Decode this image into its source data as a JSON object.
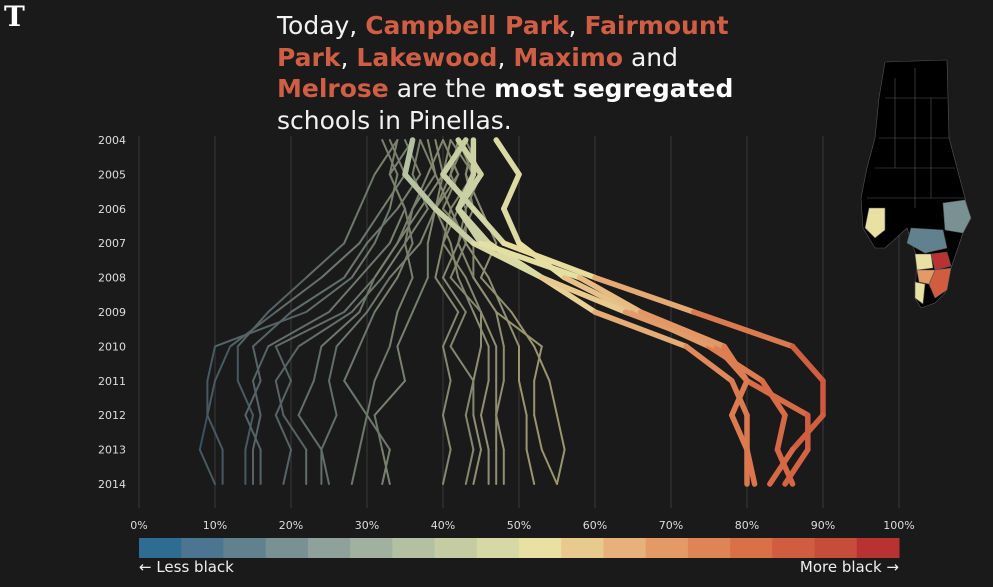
{
  "brand": {
    "logo_letter": "T",
    "logo_icon": "times-gothic-t-icon"
  },
  "headline": {
    "prefix": "Today, ",
    "schools": [
      "Campbell Park",
      "Fairmount Park",
      "Lakewood",
      "Maximo",
      "Melrose"
    ],
    "sep_comma": ", ",
    "sep_and": " and ",
    "middle": " are the ",
    "emphasis": "most segregated",
    "suffix": " schools in Pinellas."
  },
  "colors": {
    "background": "#1a1a1a",
    "highlight": "#cf5e44",
    "scale": [
      "#2e6c92",
      "#4b7590",
      "#62818f",
      "#7a9194",
      "#8ea19a",
      "#a0b1a0",
      "#b3c0a2",
      "#c5cca2",
      "#d6d8a6",
      "#e8e1a1",
      "#e8c98e",
      "#e6b17a",
      "#e39a67",
      "#df8456",
      "#d97048",
      "#d05d40",
      "#c74d3b",
      "#b93232"
    ]
  },
  "legend": {
    "less": "← Less black",
    "more": "More black →"
  },
  "chart_data": {
    "type": "line",
    "x_axis": {
      "label": "",
      "ticks": [
        "0%",
        "10%",
        "20%",
        "30%",
        "40%",
        "50%",
        "60%",
        "70%",
        "80%",
        "90%",
        "100%"
      ],
      "range": [
        0,
        100
      ]
    },
    "y_axis": {
      "label": "",
      "ticks": [
        "2004",
        "2005",
        "2006",
        "2007",
        "2008",
        "2009",
        "2010",
        "2011",
        "2012",
        "2013",
        "2014"
      ],
      "orientation": "years top-to-bottom"
    },
    "grid": true,
    "description_unit": "percent of students who are black",
    "series": [
      {
        "highlight": true,
        "values": [
          47,
          50,
          48,
          50,
          56,
          65,
          75,
          82,
          85,
          84,
          86
        ]
      },
      {
        "highlight": true,
        "values": [
          42,
          45,
          42,
          46,
          53,
          60,
          72,
          78,
          80,
          80,
          81
        ]
      },
      {
        "highlight": true,
        "values": [
          36,
          35,
          39,
          44,
          53,
          64,
          76,
          80,
          88,
          88,
          85
        ]
      },
      {
        "highlight": true,
        "values": [
          43,
          40,
          44,
          48,
          60,
          73,
          86,
          90,
          90,
          86,
          83
        ]
      },
      {
        "highlight": true,
        "values": [
          44,
          44,
          42,
          45,
          58,
          66,
          77,
          80,
          78,
          80,
          80
        ]
      },
      {
        "values": [
          32,
          34,
          33,
          31,
          28,
          22,
          10,
          9,
          9,
          8,
          10
        ]
      },
      {
        "values": [
          33,
          35,
          32,
          29,
          24,
          18,
          12,
          10,
          9,
          11,
          11
        ]
      },
      {
        "values": [
          34,
          31,
          29,
          27,
          22,
          17,
          13,
          13,
          15,
          14,
          14
        ]
      },
      {
        "values": [
          35,
          37,
          34,
          30,
          27,
          20,
          15,
          16,
          14,
          16,
          16
        ]
      },
      {
        "values": [
          36,
          33,
          35,
          33,
          29,
          25,
          17,
          15,
          16,
          15,
          15
        ]
      },
      {
        "values": [
          37,
          39,
          36,
          34,
          31,
          27,
          18,
          20,
          18,
          20,
          19
        ]
      },
      {
        "values": [
          40,
          38,
          36,
          35,
          32,
          28,
          21,
          18,
          19,
          22,
          22
        ]
      },
      {
        "values": [
          41,
          40,
          37,
          34,
          31,
          29,
          24,
          23,
          21,
          24,
          24
        ]
      },
      {
        "values": [
          43,
          41,
          39,
          37,
          33,
          30,
          26,
          25,
          26,
          24,
          25
        ]
      },
      {
        "values": [
          34,
          33,
          35,
          36,
          34,
          31,
          29,
          27,
          30,
          29,
          28
        ]
      },
      {
        "values": [
          37,
          36,
          38,
          35,
          36,
          34,
          33,
          31,
          30,
          33,
          32
        ]
      },
      {
        "values": [
          40,
          42,
          39,
          38,
          38,
          36,
          34,
          35,
          31,
          32,
          33
        ]
      },
      {
        "values": [
          42,
          44,
          41,
          40,
          39,
          42,
          40,
          41,
          40,
          41,
          40
        ]
      },
      {
        "values": [
          44,
          43,
          44,
          42,
          40,
          43,
          41,
          44,
          43,
          44,
          43
        ]
      },
      {
        "values": [
          42,
          41,
          43,
          43,
          41,
          45,
          45,
          44,
          44,
          45,
          44
        ]
      },
      {
        "values": [
          39,
          40,
          39,
          41,
          42,
          44,
          46,
          46,
          45,
          46,
          46
        ]
      },
      {
        "values": [
          41,
          44,
          42,
          40,
          43,
          45,
          47,
          47,
          47,
          47,
          47
        ]
      },
      {
        "values": [
          43,
          45,
          43,
          42,
          44,
          47,
          48,
          48,
          47,
          48,
          48
        ]
      },
      {
        "values": [
          38,
          39,
          41,
          43,
          46,
          48,
          50,
          50,
          51,
          51,
          52
        ]
      },
      {
        "values": [
          40,
          42,
          40,
          44,
          44,
          47,
          53,
          52,
          52,
          53,
          55
        ]
      },
      {
        "values": [
          44,
          43,
          45,
          47,
          45,
          49,
          52,
          54,
          55,
          56,
          55
        ]
      }
    ]
  }
}
